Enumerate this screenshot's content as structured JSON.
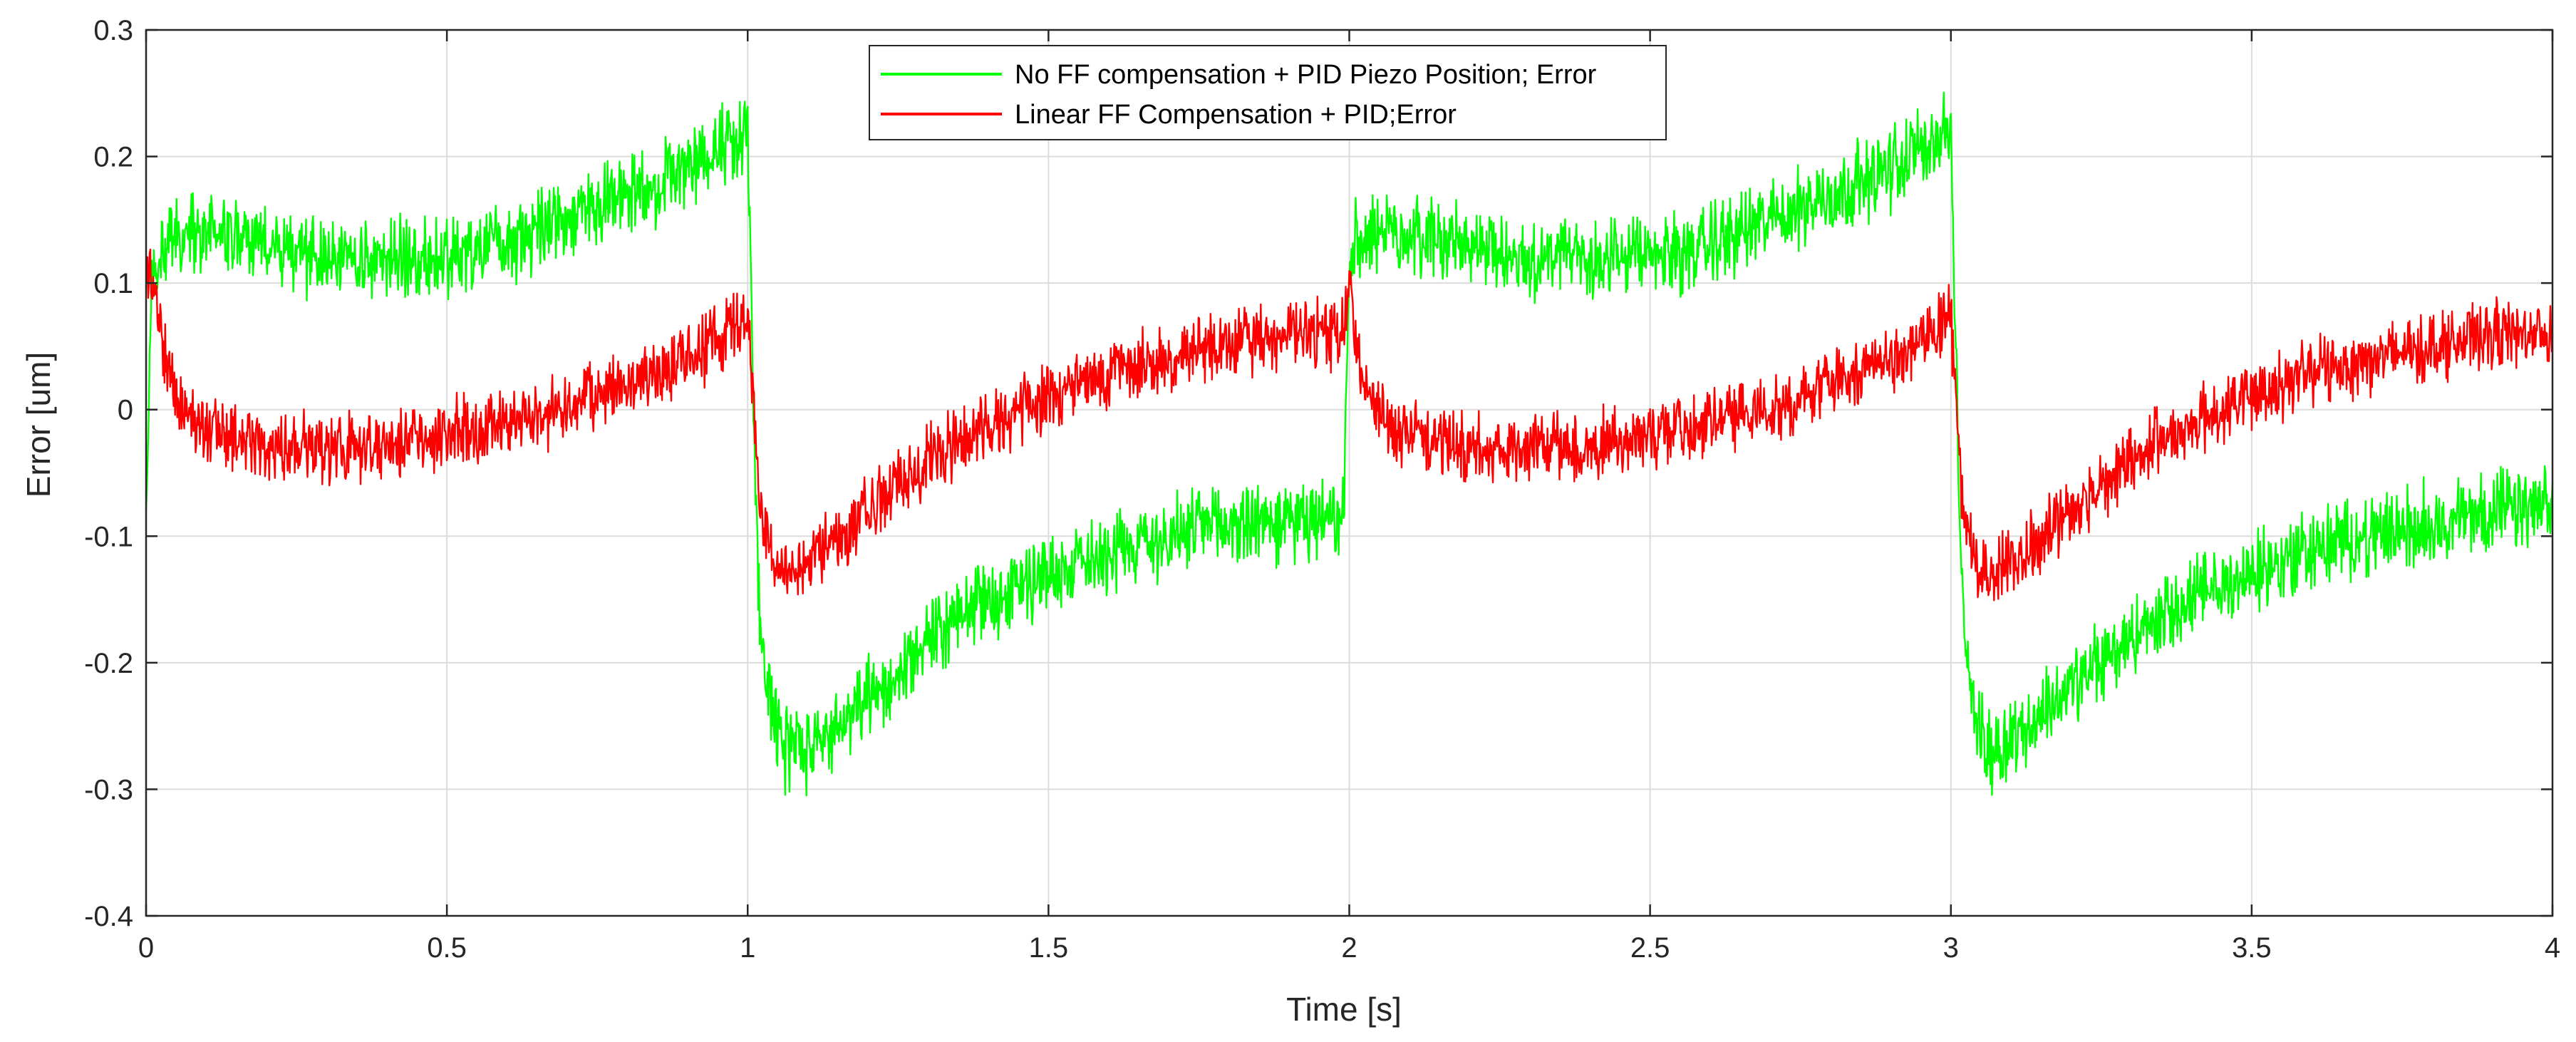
{
  "chart_data": {
    "type": "line",
    "title": "",
    "xlabel": "Time [s]",
    "ylabel": "Error [um]",
    "xlim": [
      0,
      4
    ],
    "ylim": [
      -0.4,
      0.3
    ],
    "x_ticks": [
      0,
      0.5,
      1,
      1.5,
      2,
      2.5,
      3,
      3.5,
      4
    ],
    "x_tick_labels": [
      "0",
      "0.5",
      "1",
      "1.5",
      "2",
      "2.5",
      "3",
      "3.5",
      "4"
    ],
    "y_ticks": [
      -0.4,
      -0.3,
      -0.2,
      -0.1,
      0,
      0.1,
      0.2,
      0.3
    ],
    "y_tick_labels": [
      "-0.4",
      "-0.3",
      "-0.2",
      "-0.1",
      "0",
      "0.1",
      "0.2",
      "0.3"
    ],
    "grid": true,
    "legend_position": "top-center",
    "series": [
      {
        "name": "No FF compensation + PID Piezo Position; Error",
        "color": "#00ff00",
        "noise_amplitude": 0.03,
        "x": [
          0,
          0.01,
          0.03,
          0.1,
          0.2,
          0.3,
          0.4,
          0.5,
          0.6,
          0.7,
          0.8,
          0.9,
          0.99,
          1.0,
          1.01,
          1.02,
          1.04,
          1.06,
          1.1,
          1.2,
          1.3,
          1.4,
          1.5,
          1.6,
          1.7,
          1.8,
          1.9,
          1.99,
          2.0,
          2.01,
          2.03,
          2.1,
          2.2,
          2.3,
          2.4,
          2.5,
          2.6,
          2.7,
          2.8,
          2.9,
          2.99,
          3.0,
          3.01,
          3.02,
          3.04,
          3.06,
          3.1,
          3.2,
          3.3,
          3.4,
          3.5,
          3.6,
          3.7,
          3.8,
          3.9,
          4.0
        ],
        "y": [
          -0.08,
          0.1,
          0.13,
          0.14,
          0.13,
          0.12,
          0.12,
          0.12,
          0.13,
          0.15,
          0.17,
          0.19,
          0.22,
          0.23,
          0.0,
          -0.17,
          -0.24,
          -0.27,
          -0.27,
          -0.23,
          -0.18,
          -0.15,
          -0.13,
          -0.11,
          -0.1,
          -0.09,
          -0.09,
          -0.09,
          0.1,
          0.14,
          0.14,
          0.14,
          0.13,
          0.12,
          0.12,
          0.12,
          0.13,
          0.15,
          0.17,
          0.19,
          0.22,
          0.22,
          0.0,
          -0.17,
          -0.24,
          -0.27,
          -0.26,
          -0.22,
          -0.18,
          -0.15,
          -0.13,
          -0.11,
          -0.1,
          -0.09,
          -0.08,
          -0.08
        ]
      },
      {
        "name": "Linear FF Compensation + PID;Error",
        "color": "#ff0000",
        "noise_amplitude": 0.025,
        "x": [
          0,
          0.01,
          0.03,
          0.06,
          0.1,
          0.2,
          0.3,
          0.4,
          0.5,
          0.6,
          0.7,
          0.8,
          0.9,
          0.99,
          1.0,
          1.01,
          1.02,
          1.04,
          1.06,
          1.1,
          1.2,
          1.3,
          1.4,
          1.5,
          1.6,
          1.7,
          1.8,
          1.9,
          1.99,
          2.0,
          2.01,
          2.03,
          2.06,
          2.1,
          2.2,
          2.3,
          2.4,
          2.5,
          2.6,
          2.7,
          2.8,
          2.9,
          2.99,
          3.0,
          3.01,
          3.02,
          3.04,
          3.06,
          3.1,
          3.2,
          3.3,
          3.4,
          3.5,
          3.6,
          3.7,
          3.8,
          3.9,
          4.0
        ],
        "y": [
          0.12,
          0.1,
          0.04,
          0.0,
          -0.01,
          -0.03,
          -0.03,
          -0.03,
          -0.02,
          -0.01,
          0.0,
          0.02,
          0.04,
          0.07,
          0.07,
          0.0,
          -0.08,
          -0.12,
          -0.13,
          -0.12,
          -0.08,
          -0.04,
          -0.01,
          0.01,
          0.03,
          0.04,
          0.05,
          0.06,
          0.06,
          0.12,
          0.05,
          0.01,
          -0.01,
          -0.02,
          -0.03,
          -0.03,
          -0.03,
          -0.02,
          -0.01,
          0.0,
          0.02,
          0.04,
          0.07,
          0.07,
          0.0,
          -0.08,
          -0.12,
          -0.13,
          -0.12,
          -0.08,
          -0.04,
          -0.01,
          0.01,
          0.03,
          0.04,
          0.05,
          0.06,
          0.06
        ]
      }
    ]
  }
}
